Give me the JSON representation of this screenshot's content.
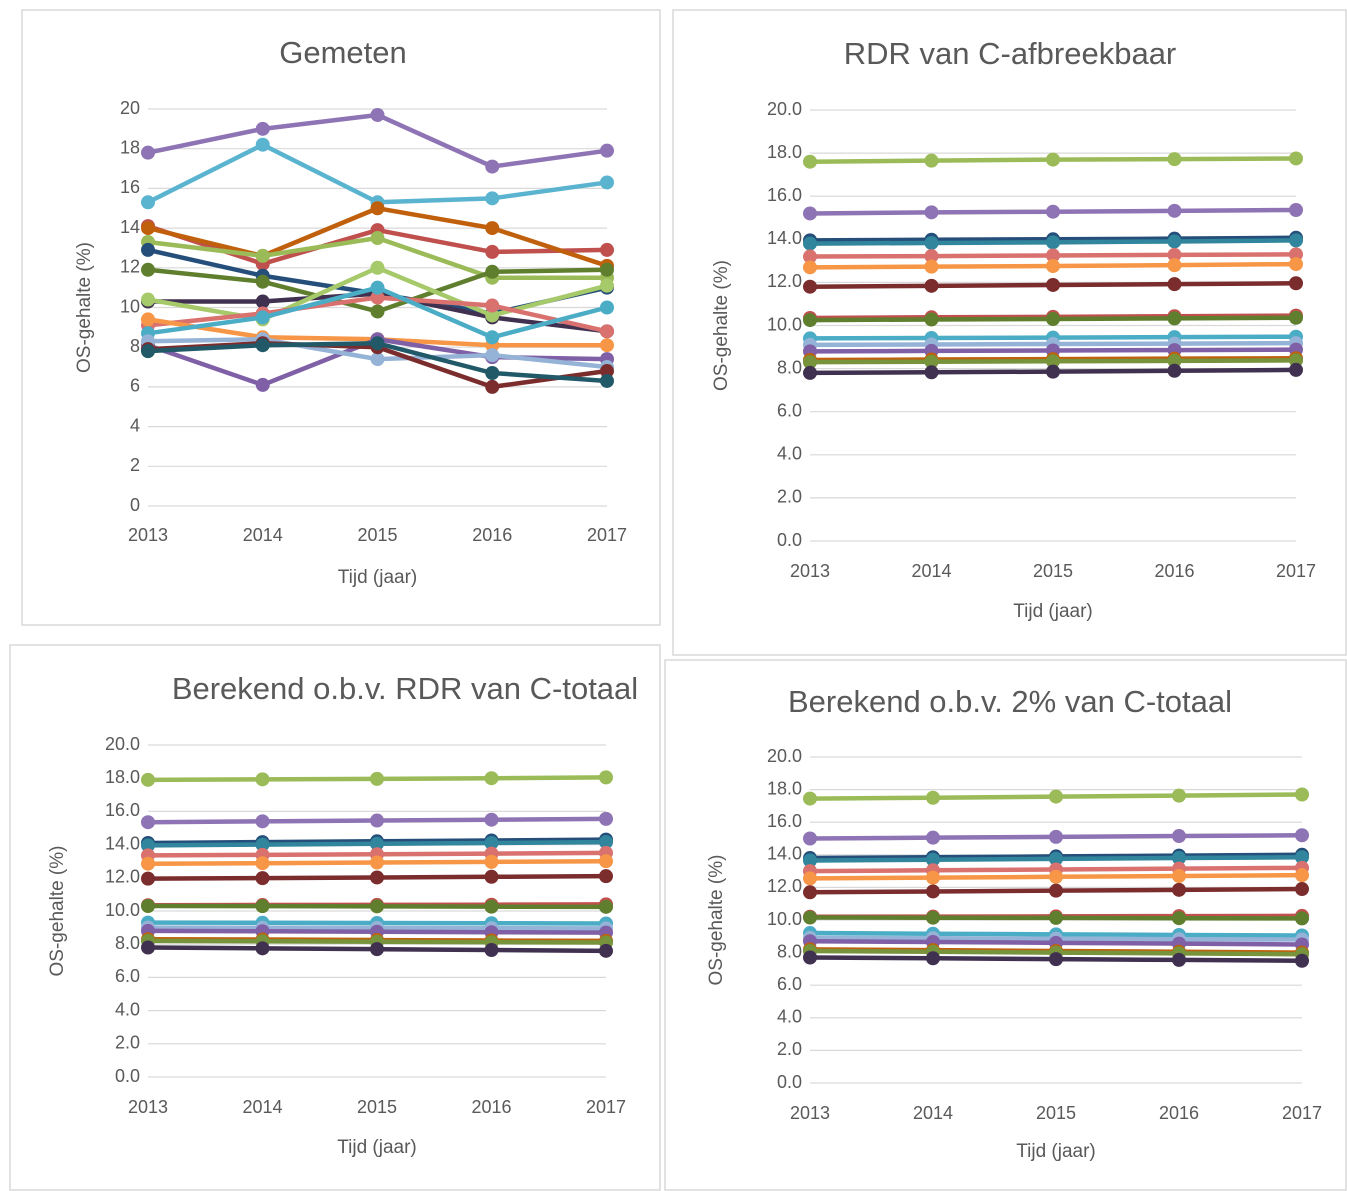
{
  "chart_data": [
    {
      "type": "line",
      "title": "Gemeten",
      "x_label": "Tijd (jaar)",
      "y_label": "OS-gehalte (%)",
      "categories": [
        "2013",
        "2014",
        "2015",
        "2016",
        "2017"
      ],
      "ylim": [
        0,
        20
      ],
      "yticks": [
        0,
        2,
        4,
        6,
        8,
        10,
        12,
        14,
        16,
        18,
        20
      ],
      "grid": true,
      "series": [
        {
          "color": "#8e74b4",
          "values": [
            17.8,
            19.0,
            19.7,
            17.1,
            17.9
          ]
        },
        {
          "color": "#5ab4d0",
          "values": [
            15.3,
            18.2,
            15.3,
            15.5,
            16.3
          ]
        },
        {
          "color": "#c0504d",
          "values": [
            14.1,
            12.2,
            13.9,
            12.8,
            12.9
          ]
        },
        {
          "color": "#c0600c",
          "values": [
            14.0,
            12.6,
            15.0,
            14.0,
            12.1
          ]
        },
        {
          "color": "#9bbb59",
          "values": [
            13.3,
            12.6,
            13.5,
            11.5,
            11.5
          ]
        },
        {
          "color": "#254f7a",
          "values": [
            12.9,
            11.6,
            10.7,
            9.7,
            11.0
          ]
        },
        {
          "color": "#5f7f2f",
          "values": [
            11.9,
            11.3,
            9.8,
            11.8,
            11.9
          ]
        },
        {
          "color": "#403151",
          "values": [
            10.3,
            10.3,
            10.7,
            9.5,
            8.8
          ]
        },
        {
          "color": "#a6c96a",
          "values": [
            10.4,
            9.4,
            12.0,
            9.6,
            11.1
          ]
        },
        {
          "color": "#d9716e",
          "values": [
            9.1,
            9.7,
            10.5,
            10.1,
            8.8
          ]
        },
        {
          "color": "#f79646",
          "values": [
            9.4,
            8.5,
            8.4,
            8.1,
            8.1
          ]
        },
        {
          "color": "#4bacc6",
          "values": [
            8.7,
            9.5,
            11.0,
            8.5,
            10.0
          ]
        },
        {
          "color": "#7f5fa6",
          "values": [
            8.1,
            6.1,
            8.4,
            7.5,
            7.4
          ]
        },
        {
          "color": "#95b3d7",
          "values": [
            8.3,
            8.4,
            7.4,
            7.6,
            7.0
          ]
        },
        {
          "color": "#7b2c2c",
          "values": [
            7.9,
            8.2,
            8.0,
            6.0,
            6.8
          ]
        },
        {
          "color": "#215968",
          "values": [
            7.8,
            8.1,
            8.2,
            6.7,
            6.3
          ]
        }
      ]
    },
    {
      "type": "line",
      "title": "RDR van C-afbreekbaar",
      "x_label": "Tijd (jaar)",
      "y_label": "OS-gehalte (%)",
      "categories": [
        "2013",
        "2014",
        "2015",
        "2016",
        "2017"
      ],
      "ylim": [
        0,
        20
      ],
      "yticks": [
        {
          "value": 0,
          "label": "0.0"
        },
        {
          "value": 2,
          "label": "2.0"
        },
        {
          "value": 4,
          "label": "4.0"
        },
        {
          "value": 6,
          "label": "6.0"
        },
        {
          "value": 8,
          "label": "8.0"
        },
        {
          "value": 10,
          "label": "10.0"
        },
        {
          "value": 12,
          "label": "12.0"
        },
        {
          "value": 14,
          "label": "14.0"
        },
        {
          "value": 16,
          "label": "16.0"
        },
        {
          "value": 18,
          "label": "18.0"
        },
        {
          "value": 20,
          "label": "20.0"
        }
      ],
      "grid": true,
      "series": [
        {
          "color": "#9bbb59",
          "values": [
            17.6,
            17.65,
            17.7,
            17.72,
            17.75
          ]
        },
        {
          "color": "#8e74b4",
          "values": [
            15.2,
            15.25,
            15.28,
            15.32,
            15.36
          ]
        },
        {
          "color": "#254f7a",
          "values": [
            13.95,
            13.98,
            14.0,
            14.03,
            14.07
          ]
        },
        {
          "color": "#31859c",
          "values": [
            13.8,
            13.83,
            13.86,
            13.9,
            13.95
          ]
        },
        {
          "color": "#d9716e",
          "values": [
            13.2,
            13.22,
            13.25,
            13.28,
            13.3
          ]
        },
        {
          "color": "#f79646",
          "values": [
            12.7,
            12.73,
            12.76,
            12.8,
            12.85
          ]
        },
        {
          "color": "#7b2c2c",
          "values": [
            11.8,
            11.84,
            11.88,
            11.92,
            11.96
          ]
        },
        {
          "color": "#c0504d",
          "values": [
            10.35,
            10.38,
            10.4,
            10.43,
            10.46
          ]
        },
        {
          "color": "#5f7f2f",
          "values": [
            10.25,
            10.28,
            10.3,
            10.33,
            10.36
          ]
        },
        {
          "color": "#4bacc6",
          "values": [
            9.4,
            9.42,
            9.44,
            9.46,
            9.48
          ]
        },
        {
          "color": "#95b3d7",
          "values": [
            9.1,
            9.12,
            9.14,
            9.16,
            9.18
          ]
        },
        {
          "color": "#7f5fa6",
          "values": [
            8.8,
            8.82,
            8.84,
            8.86,
            8.88
          ]
        },
        {
          "color": "#c0600c",
          "values": [
            8.4,
            8.42,
            8.44,
            8.46,
            8.48
          ]
        },
        {
          "color": "#77933c",
          "values": [
            8.3,
            8.32,
            8.34,
            8.36,
            8.38
          ]
        },
        {
          "color": "#403151",
          "values": [
            7.8,
            7.83,
            7.86,
            7.9,
            7.94
          ]
        }
      ]
    },
    {
      "type": "line",
      "title": "Berekend o.b.v. RDR van C-totaal",
      "x_label": "Tijd (jaar)",
      "y_label": "OS-gehalte (%)",
      "categories": [
        "2013",
        "2014",
        "2015",
        "2016",
        "2017"
      ],
      "ylim": [
        0,
        20
      ],
      "yticks": [
        {
          "value": 0,
          "label": "0.0"
        },
        {
          "value": 2,
          "label": "2.0"
        },
        {
          "value": 4,
          "label": "4.0"
        },
        {
          "value": 6,
          "label": "6.0"
        },
        {
          "value": 8,
          "label": "8.0"
        },
        {
          "value": 10,
          "label": "10.0"
        },
        {
          "value": 12,
          "label": "12.0"
        },
        {
          "value": 14,
          "label": "14.0"
        },
        {
          "value": 16,
          "label": "16.0"
        },
        {
          "value": 18,
          "label": "18.0"
        },
        {
          "value": 20,
          "label": "20.0"
        }
      ],
      "grid": true,
      "series": [
        {
          "color": "#9bbb59",
          "values": [
            17.9,
            17.93,
            17.96,
            18.0,
            18.05
          ]
        },
        {
          "color": "#8e74b4",
          "values": [
            15.35,
            15.4,
            15.45,
            15.5,
            15.55
          ]
        },
        {
          "color": "#254f7a",
          "values": [
            14.1,
            14.15,
            14.2,
            14.25,
            14.3
          ]
        },
        {
          "color": "#31859c",
          "values": [
            13.95,
            14.0,
            14.05,
            14.1,
            14.15
          ]
        },
        {
          "color": "#d9716e",
          "values": [
            13.35,
            13.38,
            13.42,
            13.46,
            13.5
          ]
        },
        {
          "color": "#f79646",
          "values": [
            12.85,
            12.88,
            12.92,
            12.96,
            13.0
          ]
        },
        {
          "color": "#7b2c2c",
          "values": [
            11.95,
            11.98,
            12.02,
            12.06,
            12.1
          ]
        },
        {
          "color": "#c0504d",
          "values": [
            10.35,
            10.36,
            10.37,
            10.38,
            10.4
          ]
        },
        {
          "color": "#5f7f2f",
          "values": [
            10.3,
            10.29,
            10.28,
            10.26,
            10.25
          ]
        },
        {
          "color": "#4bacc6",
          "values": [
            9.3,
            9.29,
            9.28,
            9.26,
            9.25
          ]
        },
        {
          "color": "#95b3d7",
          "values": [
            9.0,
            8.99,
            8.98,
            8.96,
            8.95
          ]
        },
        {
          "color": "#7f5fa6",
          "values": [
            8.8,
            8.78,
            8.75,
            8.72,
            8.7
          ]
        },
        {
          "color": "#c0600c",
          "values": [
            8.3,
            8.28,
            8.25,
            8.22,
            8.2
          ]
        },
        {
          "color": "#77933c",
          "values": [
            8.2,
            8.18,
            8.15,
            8.12,
            8.1
          ]
        },
        {
          "color": "#403151",
          "values": [
            7.8,
            7.75,
            7.7,
            7.65,
            7.6
          ]
        }
      ]
    },
    {
      "type": "line",
      "title": "Berekend o.b.v. 2% van C-totaal",
      "x_label": "Tijd (jaar)",
      "y_label": "OS-gehalte (%)",
      "categories": [
        "2013",
        "2014",
        "2015",
        "2016",
        "2017"
      ],
      "ylim": [
        0,
        20
      ],
      "yticks": [
        {
          "value": 0,
          "label": "0.0"
        },
        {
          "value": 2,
          "label": "2.0"
        },
        {
          "value": 4,
          "label": "4.0"
        },
        {
          "value": 6,
          "label": "6.0"
        },
        {
          "value": 8,
          "label": "8.0"
        },
        {
          "value": 10,
          "label": "10.0"
        },
        {
          "value": 12,
          "label": "12.0"
        },
        {
          "value": 14,
          "label": "14.0"
        },
        {
          "value": 16,
          "label": "16.0"
        },
        {
          "value": 18,
          "label": "18.0"
        },
        {
          "value": 20,
          "label": "20.0"
        }
      ],
      "grid": true,
      "series": [
        {
          "color": "#9bbb59",
          "values": [
            17.45,
            17.5,
            17.57,
            17.63,
            17.7
          ]
        },
        {
          "color": "#8e74b4",
          "values": [
            15.0,
            15.05,
            15.1,
            15.15,
            15.2
          ]
        },
        {
          "color": "#254f7a",
          "values": [
            13.8,
            13.85,
            13.9,
            13.95,
            14.0
          ]
        },
        {
          "color": "#31859c",
          "values": [
            13.65,
            13.7,
            13.75,
            13.8,
            13.85
          ]
        },
        {
          "color": "#d9716e",
          "values": [
            13.0,
            13.05,
            13.1,
            13.15,
            13.2
          ]
        },
        {
          "color": "#f79646",
          "values": [
            12.55,
            12.6,
            12.65,
            12.7,
            12.75
          ]
        },
        {
          "color": "#7b2c2c",
          "values": [
            11.7,
            11.75,
            11.8,
            11.85,
            11.9
          ]
        },
        {
          "color": "#c0504d",
          "values": [
            10.2,
            10.21,
            10.22,
            10.24,
            10.25
          ]
        },
        {
          "color": "#5f7f2f",
          "values": [
            10.15,
            10.14,
            10.13,
            10.11,
            10.1
          ]
        },
        {
          "color": "#4bacc6",
          "values": [
            9.2,
            9.16,
            9.12,
            9.08,
            9.05
          ]
        },
        {
          "color": "#95b3d7",
          "values": [
            8.9,
            8.88,
            8.85,
            8.82,
            8.8
          ]
        },
        {
          "color": "#7f5fa6",
          "values": [
            8.7,
            8.65,
            8.6,
            8.55,
            8.5
          ]
        },
        {
          "color": "#c0600c",
          "values": [
            8.2,
            8.15,
            8.1,
            8.05,
            8.0
          ]
        },
        {
          "color": "#77933c",
          "values": [
            8.1,
            8.05,
            8.0,
            7.95,
            7.9
          ]
        },
        {
          "color": "#403151",
          "values": [
            7.7,
            7.65,
            7.6,
            7.55,
            7.5
          ]
        }
      ]
    }
  ]
}
